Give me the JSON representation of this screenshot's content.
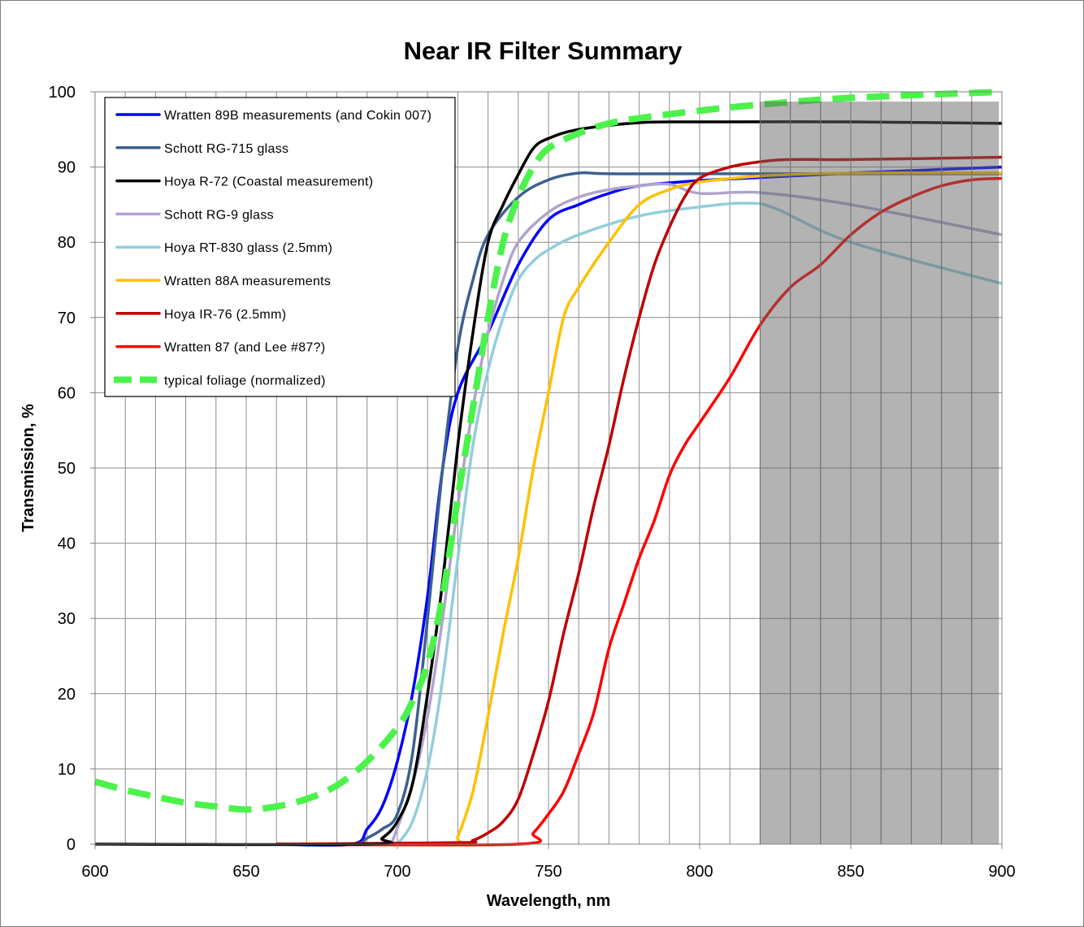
{
  "chart_data": {
    "type": "line",
    "title": "Near IR Filter Summary",
    "xlabel": "Wavelength, nm",
    "ylabel": "Transmission, %",
    "xlim": [
      600,
      900
    ],
    "ylim": [
      0,
      100
    ],
    "xticks": [
      600,
      650,
      700,
      750,
      800,
      850,
      900
    ],
    "yticks": [
      0,
      10,
      20,
      30,
      40,
      50,
      60,
      70,
      80,
      90,
      100
    ],
    "grid": true,
    "minor_x_grid_step": 10,
    "legend_position": "top-left",
    "shaded_region": {
      "x": [
        820,
        899
      ],
      "y": [
        0,
        98.7
      ],
      "color": "#646464"
    },
    "series": [
      {
        "name": "Wratten 89B measurements (and Cokin 007)",
        "color": "#0000ff",
        "dashed": false,
        "x": [
          660,
          685,
          690,
          695,
          700,
          705,
          710,
          715,
          720,
          730,
          740,
          750,
          760,
          770,
          780,
          800,
          820,
          850,
          900
        ],
        "y": [
          0,
          0,
          2,
          5,
          11,
          20,
          33,
          50,
          60,
          68,
          77,
          83,
          85,
          86.5,
          87.5,
          88.2,
          88.6,
          89.2,
          90
        ]
      },
      {
        "name": "Schott RG-715 glass",
        "color": "#3b618f",
        "dashed": false,
        "x": [
          660,
          685,
          690,
          695,
          700,
          705,
          710,
          715,
          720,
          725,
          730,
          740,
          750,
          760,
          770,
          800,
          900
        ],
        "y": [
          0,
          0,
          0.8,
          2,
          4,
          12,
          30,
          50,
          66,
          75,
          81,
          86,
          88.3,
          89.2,
          89.1,
          89.1,
          89.1
        ]
      },
      {
        "name": "Hoya R-72 (Coastal measurement)",
        "color": "#000000",
        "dashed": false,
        "x": [
          600,
          690,
          695,
          700,
          705,
          710,
          715,
          720,
          725,
          730,
          735,
          740,
          745,
          750,
          760,
          780,
          800,
          850,
          900
        ],
        "y": [
          0,
          0,
          0.8,
          3,
          8,
          20,
          35,
          53,
          68,
          80,
          85,
          89,
          92.5,
          93.8,
          95,
          95.9,
          96,
          96,
          95.8
        ]
      },
      {
        "name": "Schott RG-9 glass",
        "color": "#b0a3cc",
        "dashed": false,
        "x": [
          698,
          705,
          710,
          715,
          720,
          725,
          730,
          735,
          740,
          750,
          760,
          770,
          780,
          790,
          800,
          820,
          850,
          900
        ],
        "y": [
          0,
          8,
          17,
          30,
          45,
          58,
          68,
          75,
          80,
          84,
          86,
          87,
          87.5,
          87.7,
          86.5,
          86.6,
          85,
          81
        ]
      },
      {
        "name": "Hoya RT-830 glass (2.5mm)",
        "color": "#92cddc",
        "dashed": false,
        "x": [
          700,
          705,
          710,
          715,
          720,
          725,
          730,
          735,
          740,
          745,
          750,
          760,
          780,
          800,
          815,
          825,
          850,
          900
        ],
        "y": [
          0,
          3,
          10,
          22,
          38,
          53,
          63,
          70,
          75,
          77.5,
          79,
          81,
          83.5,
          84.7,
          85.2,
          84.5,
          80,
          74.5
        ]
      },
      {
        "name": "Wratten 88A measurements",
        "color": "#ffc000",
        "dashed": false,
        "x": [
          660,
          718,
          720,
          725,
          730,
          735,
          740,
          745,
          750,
          755,
          760,
          770,
          780,
          790,
          800,
          820,
          850,
          900
        ],
        "y": [
          0,
          0,
          1,
          7,
          17,
          28,
          38,
          50,
          60,
          70,
          74,
          80,
          85,
          87,
          88,
          88.8,
          89.2,
          89.2
        ]
      },
      {
        "name": "Hoya IR-76 (2.5mm)",
        "color": "#c00000",
        "dashed": false,
        "x": [
          660,
          720,
          725,
          730,
          735,
          740,
          745,
          750,
          755,
          760,
          765,
          770,
          775,
          780,
          785,
          790,
          795,
          800,
          810,
          820,
          830,
          850,
          900
        ],
        "y": [
          0,
          0.2,
          0.5,
          1.5,
          3,
          6,
          12,
          19,
          28,
          36,
          45,
          53,
          62,
          70,
          77,
          82,
          86,
          88.5,
          90,
          90.7,
          91,
          91,
          91.3
        ]
      },
      {
        "name": "Wratten 87 (and Lee #87?)",
        "color": "#ff0000",
        "dashed": false,
        "x": [
          660,
          740,
          745,
          750,
          755,
          760,
          765,
          770,
          775,
          780,
          785,
          790,
          795,
          800,
          810,
          820,
          830,
          840,
          850,
          860,
          870,
          880,
          890,
          900
        ],
        "y": [
          0,
          0,
          1.5,
          4,
          7,
          12,
          17.5,
          26,
          32,
          38,
          43,
          49,
          53,
          56,
          62,
          69,
          74,
          77,
          81,
          84,
          86,
          87.5,
          88.3,
          88.5
        ]
      },
      {
        "name": "typical foliage (normalized)",
        "color": "#4cf24c",
        "dashed": true,
        "x": [
          600,
          610,
          620,
          630,
          640,
          650,
          660,
          670,
          680,
          690,
          700,
          705,
          710,
          715,
          720,
          725,
          730,
          735,
          740,
          745,
          750,
          760,
          770,
          780,
          800,
          820,
          850,
          900
        ],
        "y": [
          8.3,
          7.2,
          6.3,
          5.5,
          5,
          4.6,
          5,
          6,
          7.8,
          11,
          15.5,
          19,
          24,
          33,
          46,
          58,
          70,
          80,
          86,
          90,
          92.5,
          94.5,
          95.8,
          96.5,
          97.5,
          98.3,
          99.2,
          100
        ]
      }
    ]
  }
}
